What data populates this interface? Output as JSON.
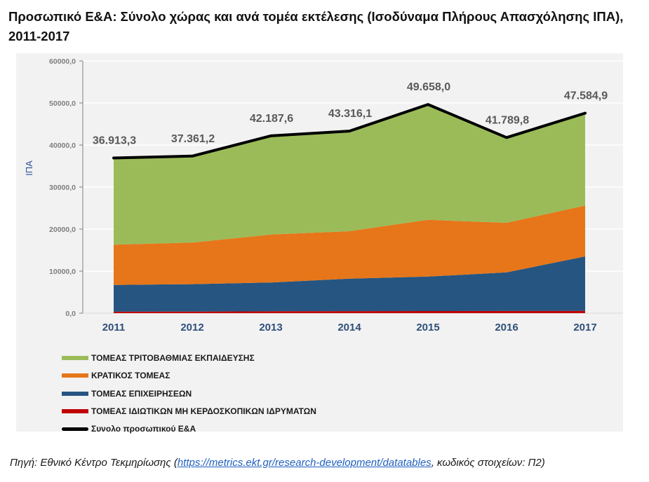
{
  "title": "Προσωπικό  Ε&Α: Σύνολο χώρας και ανά τομέα εκτέλεσης (Ισοδύναμα Πλήρους Απασχόλησης ΙΠΑ), 2011-2017",
  "chart_data": {
    "type": "area",
    "stacked": true,
    "title": "Προσωπικό  Ε&Α: Σύνολο χώρας και ανά τομέα εκτέλεσης (Ισοδύναμα Πλήρους Απασχόλησης ΙΠΑ), 2011-2017",
    "xlabel": "",
    "ylabel": "ΙΠΑ",
    "ylim": [
      0,
      60000
    ],
    "yticks": [
      0,
      10000,
      20000,
      30000,
      40000,
      50000,
      60000
    ],
    "ytick_labels": [
      "0,0",
      "10000,0",
      "20000,0",
      "30000,0",
      "40000,0",
      "50000,0",
      "60000,0"
    ],
    "grid": true,
    "legend_position": "bottom-left",
    "categories": [
      "2011",
      "2012",
      "2013",
      "2014",
      "2015",
      "2016",
      "2017"
    ],
    "series": [
      {
        "name": "ΤΟΜΕΑΣ ΙΔΙΩΤΙΚΩΝ ΜΗ ΚΕΡΔΟΣΚΟΠΙΚΩΝ ΙΔΡΥΜΑΤΩΝ",
        "color": "#c00000",
        "type": "area",
        "values": [
          350,
          380,
          450,
          480,
          500,
          520,
          540
        ]
      },
      {
        "name": "ΤΟΜΕΑΣ ΕΠΙΧΕΙΡΗΣΕΩΝ",
        "color": "#265581",
        "type": "area",
        "values": [
          6350,
          6520,
          6850,
          7720,
          8200,
          9180,
          12960
        ]
      },
      {
        "name": "ΚΡΑΤΙΚΟΣ ΤΟΜΕΑΣ",
        "color": "#e67619",
        "type": "area",
        "values": [
          9600,
          9900,
          11400,
          11300,
          13500,
          11800,
          12100
        ]
      },
      {
        "name": "ΤΟΜΕΑΣ ΤΡΙΤΟΒΑΘΜΙΑΣ ΕΚΠΑΙΔΕΥΣΗΣ",
        "color": "#9bbb59",
        "type": "area",
        "values": [
          20613.3,
          20561.2,
          23487.6,
          23816.1,
          27458.0,
          20289.8,
          21984.9
        ]
      },
      {
        "name": "Συνολο προσωπικού Ε&Α",
        "color": "#000000",
        "type": "line",
        "values": [
          36913.3,
          37361.2,
          42187.6,
          43316.1,
          49658.0,
          41789.8,
          47584.9
        ]
      }
    ],
    "data_labels": [
      "36.913,3",
      "37.361,2",
      "42.187,6",
      "43.316,1",
      "49.658,0",
      "41.789,8",
      "47.584,9"
    ]
  },
  "legend": [
    {
      "label": "ΤΟΜΕΑΣ ΤΡΙΤΟΒΑΘΜΙΑΣ ΕΚΠΑΙΔΕΥΣΗΣ",
      "color": "#9bbb59"
    },
    {
      "label": "ΚΡΑΤΙΚΟΣ ΤΟΜΕΑΣ",
      "color": "#e67619"
    },
    {
      "label": "ΤΟΜΕΑΣ ΕΠΙΧΕΙΡΗΣΕΩΝ",
      "color": "#265581"
    },
    {
      "label": "ΤΟΜΕΑΣ ΙΔΙΩΤΙΚΩΝ ΜΗ ΚΕΡΔΟΣΚΟΠΙΚΩΝ ΙΔΡΥΜΑΤΩΝ",
      "color": "#c00000"
    },
    {
      "label": "Συνολο προσωπικού Ε&Α",
      "color": "#000000"
    }
  ],
  "source": {
    "prefix": "Πηγή: Εθνικό Κέντρο Τεκμηρίωσης (",
    "link": "https://metrics.ekt.gr/research-development/datatables",
    "suffix": ", κωδικός στοιχείων: Π2)"
  }
}
